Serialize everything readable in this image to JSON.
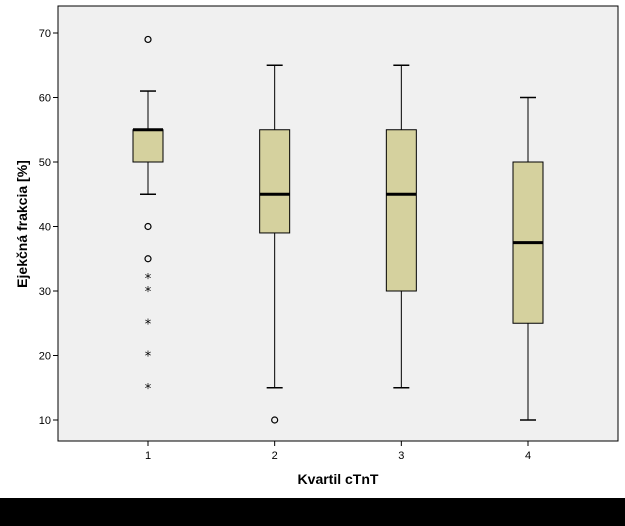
{
  "chart_data": {
    "type": "boxplot",
    "title": "",
    "xlabel": "Kvartil cTnT",
    "ylabel": "Ejekčná frakcia [%]",
    "ylim": [
      7,
      75
    ],
    "yticks": [
      10,
      20,
      30,
      40,
      50,
      60,
      70
    ],
    "grid": false,
    "categories": [
      "1",
      "2",
      "3",
      "4"
    ],
    "boxes": [
      {
        "category": "1",
        "whisker_low": 45,
        "q1": 50,
        "median": 55,
        "q3": 55,
        "whisker_high": 61,
        "outliers": [
          69,
          40,
          35
        ],
        "extremes": [
          32,
          30,
          25,
          20,
          15
        ]
      },
      {
        "category": "2",
        "whisker_low": 15,
        "q1": 39,
        "median": 45,
        "q3": 55,
        "whisker_high": 65,
        "outliers": [
          10
        ],
        "extremes": []
      },
      {
        "category": "3",
        "whisker_low": 15,
        "q1": 30,
        "median": 45,
        "q3": 55,
        "whisker_high": 65,
        "outliers": [],
        "extremes": []
      },
      {
        "category": "4",
        "whisker_low": 10,
        "q1": 25,
        "median": 37.5,
        "q3": 50,
        "whisker_high": 60,
        "outliers": [],
        "extremes": []
      }
    ],
    "colors": {
      "plot_background": "#f0f0f0",
      "box_fill": "#d5d19e",
      "line": "#000000"
    },
    "markers": {
      "extreme": "*"
    }
  }
}
